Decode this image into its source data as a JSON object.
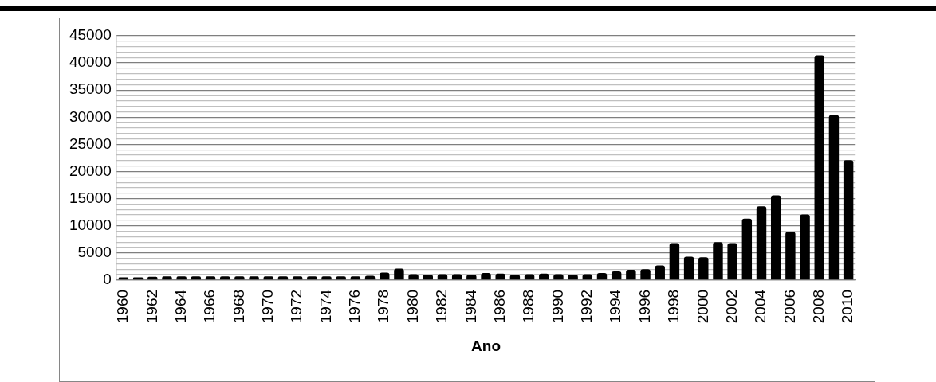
{
  "chart_data": {
    "type": "bar",
    "xlabel": "Ano",
    "categories": [
      "1960",
      null,
      "1962",
      null,
      "1964",
      null,
      "1966",
      null,
      "1968",
      null,
      "1970",
      null,
      "1972",
      null,
      "1974",
      null,
      "1976",
      null,
      "1978",
      null,
      "1980",
      null,
      "1982",
      null,
      "1984",
      null,
      "1986",
      null,
      "1988",
      null,
      "1990",
      null,
      "1992",
      null,
      "1994",
      null,
      "1996",
      null,
      "1998",
      null,
      "2000",
      null,
      "2002",
      null,
      "2004",
      null,
      "2006",
      null,
      "2008",
      null,
      "2010"
    ],
    "values": [
      500,
      500,
      600,
      700,
      700,
      700,
      700,
      700,
      700,
      700,
      700,
      700,
      700,
      700,
      700,
      700,
      700,
      800,
      1400,
      2100,
      1100,
      1000,
      1100,
      1100,
      1000,
      1300,
      1200,
      1000,
      1100,
      1200,
      1100,
      1000,
      1100,
      1300,
      1600,
      1900,
      2000,
      2700,
      6800,
      4300,
      4200,
      7000,
      6800,
      11300,
      13600,
      15600,
      8900,
      12100,
      41400,
      30400,
      22100
    ],
    "color": "#000000",
    "ylim": [
      0,
      45000
    ],
    "yticks": [
      0,
      {
        "value": 1000,
        "label": null
      },
      {
        "value": 2000,
        "label": null
      },
      {
        "value": 3000,
        "label": null
      },
      {
        "value": 4000,
        "label": null
      },
      5000,
      {
        "value": 6000,
        "label": null
      },
      {
        "value": 7000,
        "label": null
      },
      {
        "value": 8000,
        "label": null
      },
      {
        "value": 9000,
        "label": null
      },
      10000,
      {
        "value": 11000,
        "label": null
      },
      {
        "value": 12000,
        "label": null
      },
      {
        "value": 13000,
        "label": null
      },
      {
        "value": 14000,
        "label": null
      },
      15000,
      {
        "value": 16000,
        "label": null
      },
      {
        "value": 17000,
        "label": null
      },
      {
        "value": 18000,
        "label": null
      },
      {
        "value": 19000,
        "label": null
      },
      20000,
      {
        "value": 21000,
        "label": null
      },
      {
        "value": 22000,
        "label": null
      },
      {
        "value": 23000,
        "label": null
      },
      {
        "value": 24000,
        "label": null
      },
      25000,
      {
        "value": 26000,
        "label": null
      },
      {
        "value": 27000,
        "label": null
      },
      {
        "value": 28000,
        "label": null
      },
      {
        "value": 29000,
        "label": null
      },
      30000,
      {
        "value": 31000,
        "label": null
      },
      {
        "value": 32000,
        "label": null
      },
      {
        "value": 33000,
        "label": null
      },
      {
        "value": 34000,
        "label": null
      },
      35000,
      {
        "value": 36000,
        "label": null
      },
      {
        "value": 37000,
        "label": null
      },
      {
        "value": 38000,
        "label": null
      },
      {
        "value": 39000,
        "label": null
      },
      40000,
      {
        "value": 41000,
        "label": null
      },
      {
        "value": 42000,
        "label": null
      },
      {
        "value": 43000,
        "label": null
      },
      {
        "value": 44000,
        "label": null
      },
      45000
    ],
    "grid": "y",
    "legend": false
  }
}
